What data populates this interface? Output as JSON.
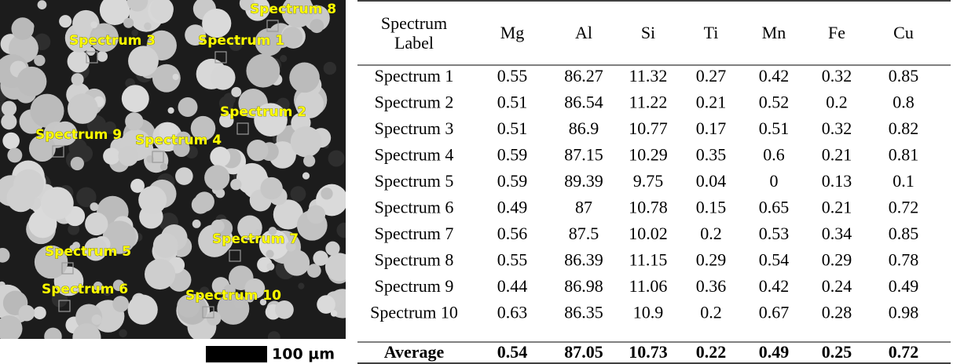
{
  "image": {
    "labels": [
      "Spectrum 8",
      "Spectrum 3",
      "Spectrum 1",
      "Spectrum 2",
      "Spectrum 9",
      "Spectrum 4",
      "Spectrum 7",
      "Spectrum 5",
      "Spectrum 6",
      "Spectrum 10"
    ],
    "scale_bar": "100 µm"
  },
  "table": {
    "header": [
      "Spectrum Label",
      "Mg",
      "Al",
      "Si",
      "Ti",
      "Mn",
      "Fe",
      "Cu"
    ],
    "rows": [
      [
        "Spectrum 1",
        0.55,
        86.27,
        11.32,
        0.27,
        0.42,
        0.32,
        0.85
      ],
      [
        "Spectrum 2",
        0.51,
        86.54,
        11.22,
        0.21,
        0.52,
        0.2,
        0.8
      ],
      [
        "Spectrum 3",
        0.51,
        86.9,
        10.77,
        0.17,
        0.51,
        0.32,
        0.82
      ],
      [
        "Spectrum 4",
        0.59,
        87.15,
        10.29,
        0.35,
        0.6,
        0.21,
        0.81
      ],
      [
        "Spectrum 5",
        0.59,
        89.39,
        9.75,
        0.04,
        0,
        0.13,
        0.1
      ],
      [
        "Spectrum 6",
        0.49,
        87,
        10.78,
        0.15,
        0.65,
        0.21,
        0.72
      ],
      [
        "Spectrum 7",
        0.56,
        87.5,
        10.02,
        0.2,
        0.53,
        0.34,
        0.85
      ],
      [
        "Spectrum 8",
        0.55,
        86.39,
        11.15,
        0.29,
        0.54,
        0.29,
        0.78
      ],
      [
        "Spectrum 9",
        0.44,
        86.98,
        11.06,
        0.36,
        0.42,
        0.24,
        0.49
      ],
      [
        "Spectrum 10",
        0.63,
        86.35,
        10.9,
        0.2,
        0.67,
        0.28,
        0.98
      ]
    ],
    "average": [
      "Average",
      0.54,
      87.05,
      10.73,
      0.22,
      0.49,
      0.25,
      0.72
    ]
  }
}
